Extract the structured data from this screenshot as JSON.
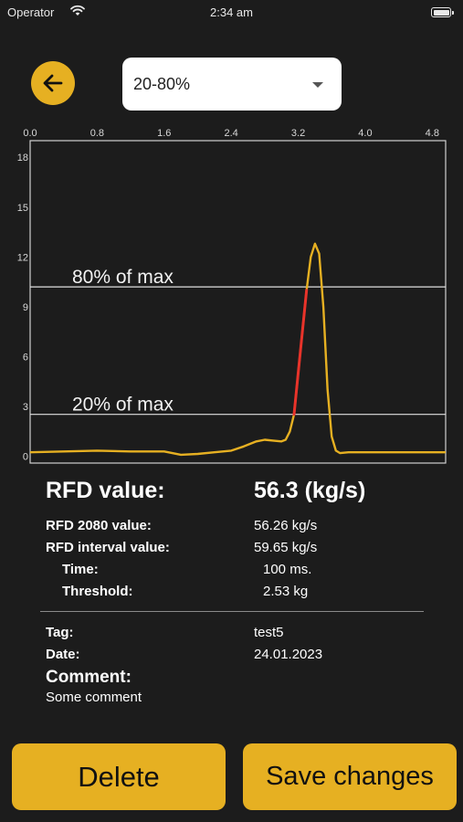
{
  "status_bar": {
    "carrier": "Operator",
    "time": "2:34 am"
  },
  "icons": {
    "back": "arrow-left-icon",
    "wifi": "wifi-icon",
    "battery": "battery-icon",
    "dropdown": "caret-down-icon"
  },
  "colors": {
    "accent": "#e6b022",
    "curve": "#e6b022",
    "highlight": "#e8332a",
    "background": "#1c1c1c"
  },
  "range_select": {
    "value": "20-80%"
  },
  "chart_data": {
    "type": "line",
    "x_ticks": [
      "0.0",
      "0.8",
      "1.6",
      "2.4",
      "3.2",
      "4.0",
      "4.8"
    ],
    "y_ticks": [
      "0",
      "3",
      "6",
      "9",
      "12",
      "15",
      "18"
    ],
    "xlim": [
      0,
      4.96
    ],
    "ylim": [
      -0.4,
      19
    ],
    "series": [
      {
        "x": [
          0,
          0.4,
          0.8,
          1.2,
          1.6,
          1.8,
          2.0,
          2.2,
          2.4,
          2.55,
          2.7,
          2.8,
          2.9,
          3.0,
          3.05,
          3.1,
          3.15,
          3.2,
          3.25,
          3.3,
          3.35,
          3.4,
          3.45,
          3.5,
          3.55,
          3.6,
          3.65,
          3.7,
          3.8,
          4.0,
          4.4,
          4.8,
          4.96
        ],
        "y": [
          0.25,
          0.3,
          0.35,
          0.3,
          0.3,
          0.1,
          0.15,
          0.25,
          0.35,
          0.6,
          0.9,
          1.0,
          0.95,
          0.9,
          1.0,
          1.5,
          2.53,
          5.0,
          7.5,
          10.0,
          12.0,
          12.8,
          12.2,
          9.0,
          4.0,
          1.2,
          0.35,
          0.2,
          0.25,
          0.25,
          0.25,
          0.25,
          0.25
        ]
      }
    ],
    "highlight_range": [
      3.15,
      3.3
    ],
    "reference_lines": [
      {
        "label": "80% of max",
        "value": 10.2
      },
      {
        "label": "20% of max",
        "value": 2.53
      }
    ],
    "grid": false
  },
  "results": {
    "rfd_label": "RFD value:",
    "rfd_value": "56.3 (kg/s)",
    "rfd2080_label": "RFD 2080 value:",
    "rfd2080_value": "56.26 kg/s",
    "interval_label": "RFD interval value:",
    "interval_value": "59.65 kg/s",
    "time_label": "Time:",
    "time_value": "100 ms.",
    "threshold_label": "Threshold:",
    "threshold_value": "2.53 kg"
  },
  "meta": {
    "tag_label": "Tag:",
    "tag_value": "test5",
    "date_label": "Date:",
    "date_value": "24.01.2023",
    "comment_label": "Comment:",
    "comment_text": "Some comment"
  },
  "actions": {
    "delete_label": "Delete",
    "save_label": "Save changes"
  }
}
